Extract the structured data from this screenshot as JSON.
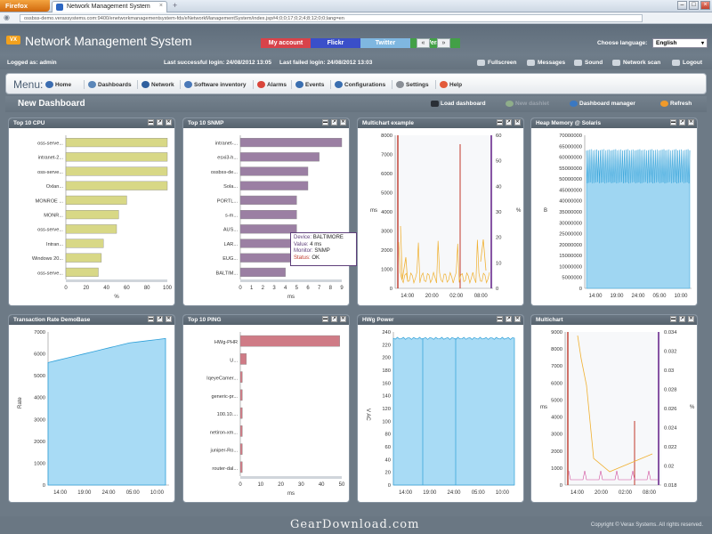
{
  "browser": {
    "menu_button": "Firefox",
    "tab_title": "Network Management System",
    "tab_close": "×",
    "new_tab": "+",
    "url": "ossbss-demo.veraxsystems.com:9400/enetworkmanagementsystem-fds/eNetworkManagementSystem/index.jsp#4;0;0;17;0;2;4;8;12;0;0;lang=en"
  },
  "header": {
    "logo": "VX",
    "title": "Network Management System",
    "buttons": [
      {
        "label": "My account",
        "color": "#d8434a"
      },
      {
        "label": "Flickr",
        "color": "#3a4fc9"
      },
      {
        "label": "Twitter",
        "color": "#7fb7e0"
      },
      {
        "label": "Verax",
        "color": "#43a047"
      }
    ],
    "prev": "«",
    "next": "»",
    "language_label": "Choose language:",
    "language_value": "English"
  },
  "login": {
    "logged_as": "Logged as:  admin",
    "last_success": "Last successful login:  24/08/2012 13:05",
    "last_failed": "Last failed login:  24/08/2012 13:03",
    "tools": [
      "Fullscreen",
      "Messages",
      "Sound",
      "Network scan",
      "Logout"
    ]
  },
  "menu": {
    "label": "Menu:",
    "items": [
      {
        "label": "Home",
        "color": "#3b6db0"
      },
      {
        "label": "Dashboards",
        "color": "#5a86b8"
      },
      {
        "label": "Network",
        "color": "#2e5f9e"
      },
      {
        "label": "Software inventory",
        "color": "#4a79b8"
      },
      {
        "label": "Alarms",
        "color": "#d9463b"
      },
      {
        "label": "Events",
        "color": "#3a6fb0"
      },
      {
        "label": "Configurations",
        "color": "#3a6fb0"
      },
      {
        "label": "Settings",
        "color": "#8a8f96"
      },
      {
        "label": "Help",
        "color": "#e35b3b"
      }
    ]
  },
  "dashboard": {
    "title": "New Dashboard",
    "actions": [
      "Load dashboard",
      "New dashlet",
      "Dashboard manager",
      "Refresh"
    ]
  },
  "panels": [
    "Top 10 CPU",
    "Top 10 SNMP",
    "Multichart example",
    "Heap Memory @ Solaris",
    "Transaction Rate  DemoBase",
    "Top 10 PING",
    "HWg Power",
    "Multichart"
  ],
  "panel_icons": [
    "▬",
    "↗",
    "✕"
  ],
  "tooltip": {
    "device_k": "Device:",
    "device_v": "BALTIMORE",
    "value_k": "Value:",
    "value_v": "4 ms",
    "monitor_k": "Monitor:",
    "monitor_v": "SNMP",
    "status_k": "Status:",
    "status_v": "OK"
  },
  "chart_data": [
    {
      "type": "bar",
      "title": "Top 10 CPU",
      "categories": [
        "oss-serve...",
        "intranet-2...",
        "oss-serve...",
        "Oxlan...",
        "MONROE ...",
        "MONR...",
        "oss-serve...",
        "Intran...",
        "Windows 20...",
        "oss-serve..."
      ],
      "values": [
        100,
        100,
        100,
        100,
        60,
        52,
        50,
        37,
        35,
        32
      ],
      "xlabel": "%",
      "xticks": [
        0,
        20,
        40,
        60,
        80,
        100
      ],
      "xlim": [
        0,
        100
      ],
      "color": "#d8d886"
    },
    {
      "type": "bar",
      "title": "Top 10 SNMP",
      "categories": [
        "intranet-...",
        "esxi3-h...",
        "ossbss-de...",
        "Sola...",
        "PORTL...",
        "s-m...",
        "AUS...",
        "LAR...",
        "EUG...",
        "BALTIM..."
      ],
      "values": [
        9,
        7,
        6,
        6,
        5,
        5,
        5,
        5,
        5,
        4
      ],
      "xlabel": "ms",
      "xticks": [
        0,
        1,
        2,
        3,
        4,
        5,
        6,
        7,
        8,
        9
      ],
      "xlim": [
        0,
        9
      ],
      "color": "#9b7fa3"
    },
    {
      "type": "line",
      "title": "Multichart example",
      "xticks": [
        "14:00",
        "20:00",
        "02:00",
        "08:00"
      ],
      "yticks_left": [
        0,
        1000,
        2000,
        3000,
        4000,
        5000,
        6000,
        7000,
        8000
      ],
      "ylabel_left": "ms",
      "yticks_right": [
        0,
        10,
        20,
        30,
        40,
        50,
        60
      ],
      "ylabel_right": "%",
      "ylim": [
        0,
        8000
      ]
    },
    {
      "type": "area",
      "title": "Heap Memory @ Solaris",
      "xticks": [
        "14:00",
        "19:00",
        "24:00",
        "05:00",
        "10:00"
      ],
      "yticks": [
        0,
        5000000,
        10000000,
        15000000,
        20000000,
        25000000,
        30000000,
        35000000,
        40000000,
        45000000,
        50000000,
        55000000,
        60000000,
        65000000,
        70000000
      ],
      "ytick_labels": [
        "0",
        "5000000",
        "10000000",
        "15000000",
        "20000000",
        "25000000",
        "30000000",
        "35000000",
        "40000000",
        "45000000",
        "50000000",
        "55000000",
        "60000000",
        "65000000",
        "70000000"
      ],
      "ylabel": "B",
      "ylim": [
        0,
        70000000
      ],
      "range": [
        48000000,
        63000000
      ]
    },
    {
      "type": "area",
      "title": "Transaction Rate  DemoBase",
      "xticks": [
        "14:00",
        "19:00",
        "24:00",
        "05:00",
        "10:00"
      ],
      "yticks": [
        0,
        1000,
        2000,
        3000,
        4000,
        5000,
        6000,
        7000
      ],
      "ylabel": "Rate",
      "ylim": [
        0,
        7000
      ],
      "values": [
        5600,
        5700,
        5800,
        5900,
        6000,
        6100,
        6200,
        6300,
        6400,
        6500,
        6550,
        6600,
        6650,
        6700
      ]
    },
    {
      "type": "bar",
      "title": "Top 10 PING",
      "categories": [
        "HWg-PHR",
        "U...",
        "IqeyeCamer...",
        "generic-pr...",
        "100.10....",
        "netiron-xm...",
        "juniper-Ro...",
        "router-dal..."
      ],
      "values": [
        49,
        3,
        1,
        1,
        1,
        1,
        1,
        1
      ],
      "xlabel": "ms",
      "xticks": [
        0,
        10,
        20,
        30,
        40,
        50
      ],
      "xlim": [
        0,
        50
      ],
      "color": "#cf7b86"
    },
    {
      "type": "area",
      "title": "HWg Power",
      "xticks": [
        "14:00",
        "19:00",
        "24:00",
        "05:00",
        "10:00"
      ],
      "yticks": [
        0,
        20,
        40,
        60,
        80,
        100,
        120,
        140,
        160,
        180,
        200,
        220,
        240
      ],
      "ylabel": "V AC",
      "ylim": [
        0,
        240
      ],
      "level": 230
    },
    {
      "type": "line",
      "title": "Multichart",
      "xticks": [
        "14:00",
        "20:00",
        "02:00",
        "08:00"
      ],
      "yticks_left": [
        0,
        1000,
        2000,
        3000,
        4000,
        5000,
        6000,
        7000,
        8000,
        9000
      ],
      "ylabel_left": "ms",
      "yticks_right": [
        0.018,
        0.02,
        0.022,
        0.024,
        0.026,
        0.028,
        0.03,
        0.032,
        0.034
      ],
      "ylabel_right": "%",
      "ylim": [
        0,
        9000
      ]
    }
  ],
  "footer": {
    "copyright": "Copyright © Verax Systems. All rights reserved.",
    "watermark": "GearDownload.com"
  }
}
